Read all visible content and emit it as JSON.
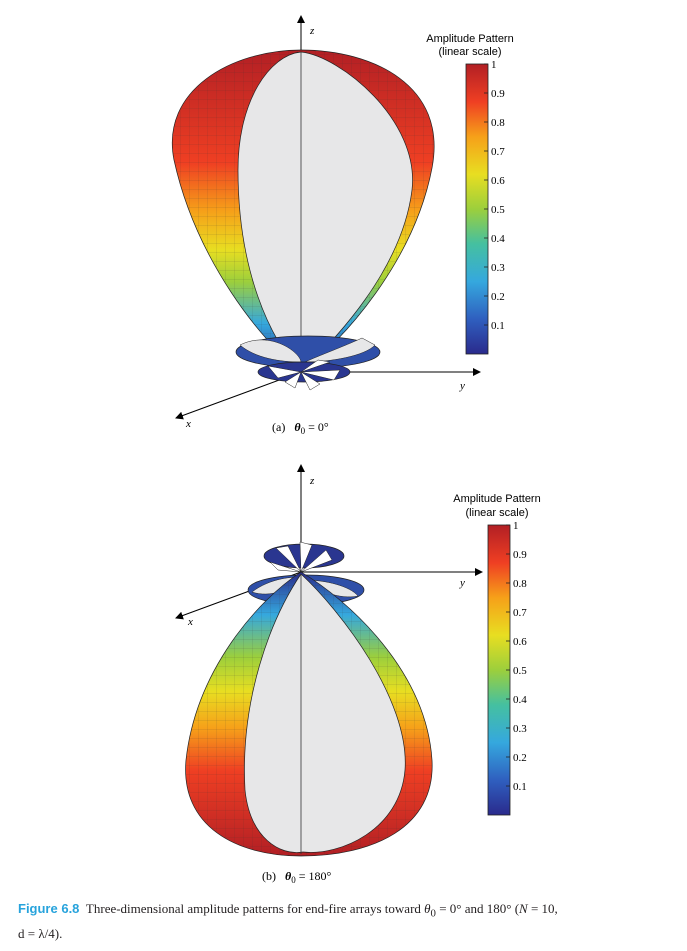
{
  "panels": [
    {
      "id": "a",
      "label": "(a)",
      "theta_text": "θ",
      "theta_sub": "0",
      "theta_value": " = 0°",
      "direction": "up",
      "axes": {
        "z": "z",
        "y": "y",
        "x": "x"
      }
    },
    {
      "id": "b",
      "label": "(b)",
      "theta_text": "θ",
      "theta_sub": "0",
      "theta_value": " = 180°",
      "direction": "down",
      "axes": {
        "z": "z",
        "y": "y",
        "x": "x"
      }
    }
  ],
  "colorbar": {
    "title_line1": "Amplitude Pattern",
    "title_line2": "(linear scale)",
    "ticks": [
      "1",
      "0.9",
      "0.8",
      "0.7",
      "0.6",
      "0.5",
      "0.4",
      "0.3",
      "0.2",
      "0.1"
    ],
    "colors": [
      "#2a2a8c",
      "#2f5fbf",
      "#35a8de",
      "#45c0a0",
      "#9ccf3c",
      "#e8de21",
      "#f6a019",
      "#ef3f23",
      "#b21f24"
    ]
  },
  "caption": {
    "figure_label": "Figure 6.8",
    "text_line1_a": "Three-dimensional amplitude patterns for end-fire arrays toward ",
    "theta": "θ",
    "theta_sub": "0",
    "text_line1_b": " = 0° and 180° (",
    "N": "N",
    "text_line1_c": " = 10,",
    "text_line2": "d = λ/4)."
  }
}
